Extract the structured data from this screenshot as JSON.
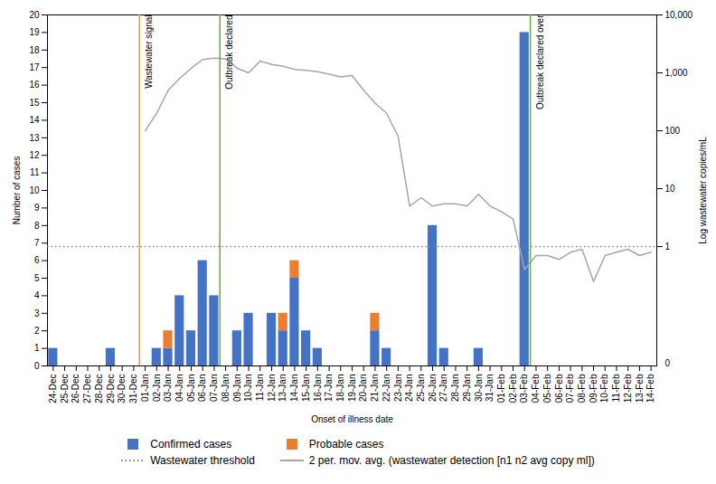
{
  "chart_data": {
    "type": "bar",
    "stacked": true,
    "x_label": "Onset of illness date",
    "y_label": "Number of cases",
    "y2_label": "Log wastewater copies/mL",
    "categories": [
      "24-Dec",
      "25-Dec",
      "26-Dec",
      "27-Dec",
      "28-Dec",
      "29-Dec",
      "30-Dec",
      "31-Dec",
      "01-Jan",
      "02-Jan",
      "03-Jan",
      "04-Jan",
      "05-Jan",
      "06-Jan",
      "07-Jan",
      "08-Jan",
      "09-Jan",
      "10-Jan",
      "11-Jan",
      "12-Jan",
      "13-Jan",
      "14-Jan",
      "15-Jan",
      "16-Jan",
      "17-Jan",
      "18-Jan",
      "19-Jan",
      "20-Jan",
      "21-Jan",
      "22-Jan",
      "23-Jan",
      "24-Jan",
      "25-Jan",
      "26-Jan",
      "27-Jan",
      "28-Jan",
      "29-Jan",
      "30-Jan",
      "31-Jan",
      "01-Feb",
      "02-Feb",
      "03-Feb",
      "04-Feb",
      "05-Feb",
      "06-Feb",
      "07-Feb",
      "08-Feb",
      "09-Feb",
      "10-Feb",
      "11-Feb",
      "12-Feb",
      "13-Feb",
      "14-Feb"
    ],
    "series": [
      {
        "name": "Confirmed cases",
        "type": "bar",
        "color": "#4472c4",
        "values": [
          1,
          0,
          0,
          0,
          0,
          1,
          0,
          0,
          0,
          1,
          1,
          4,
          2,
          6,
          4,
          0,
          2,
          3,
          0,
          3,
          2,
          5,
          2,
          1,
          0,
          0,
          0,
          0,
          2,
          1,
          0,
          0,
          0,
          8,
          1,
          0,
          0,
          1,
          0,
          0,
          0,
          19,
          0,
          0,
          0,
          0,
          0,
          0,
          0,
          0,
          0,
          0,
          0
        ]
      },
      {
        "name": "Probable cases",
        "type": "bar",
        "color": "#ed7d31",
        "values": [
          0,
          0,
          0,
          0,
          0,
          0,
          0,
          0,
          0,
          0,
          1,
          0,
          0,
          0,
          0,
          0,
          0,
          0,
          0,
          0,
          1,
          1,
          0,
          0,
          0,
          0,
          0,
          0,
          1,
          0,
          0,
          0,
          0,
          0,
          0,
          0,
          0,
          0,
          0,
          0,
          0,
          0,
          0,
          0,
          0,
          0,
          0,
          0,
          0,
          0,
          0,
          0,
          0
        ]
      },
      {
        "name": "Wastewater threshold",
        "type": "rule",
        "axis": "y2",
        "color": "#7f7f7f",
        "line_style": "dotted",
        "y": 1.0
      },
      {
        "name": "2 per. mov. avg. (wastewater detection [n1 n2 avg copy ml])",
        "type": "line",
        "axis": "y2",
        "color": "#a6a6a6",
        "line_style": "solid",
        "values": [
          null,
          null,
          null,
          null,
          null,
          null,
          null,
          null,
          100,
          200,
          500,
          800,
          1200,
          1700,
          1800,
          1750,
          1200,
          1000,
          1600,
          1400,
          1300,
          1150,
          1100,
          1050,
          950,
          850,
          900,
          500,
          300,
          200,
          80,
          5,
          7,
          5,
          5.5,
          5.5,
          5,
          8,
          5,
          4,
          3,
          0.4,
          0.7,
          0.7,
          0.6,
          0.8,
          0.9,
          0.25,
          0.7,
          0.8,
          0.9,
          0.7,
          0.8
        ]
      }
    ],
    "ylim": [
      0,
      20
    ],
    "yticks": [
      0,
      1,
      2,
      3,
      4,
      5,
      6,
      7,
      8,
      9,
      10,
      11,
      12,
      13,
      14,
      15,
      16,
      17,
      18,
      19,
      20
    ],
    "y2lim": [
      0.0087,
      10000
    ],
    "y2ticks": [
      1,
      10,
      100,
      {
        "value": 1000,
        "label": "1,000"
      },
      {
        "value": 10000,
        "label": "10,000"
      }
    ],
    "log": "y2",
    "grid": false,
    "legend": "bottom",
    "vlines": [
      {
        "after": "31-Dec",
        "text": "Wastewater signal",
        "color": "#c9a96e"
      },
      {
        "after": "07-Jan",
        "text": "Outbreak declared",
        "color": "#70ad47"
      },
      {
        "after": "03-Feb",
        "text": "Outbreak declared over",
        "color": "#70ad47"
      }
    ],
    "annotations": [
      {
        "text": "0",
        "axis": "y2"
      }
    ]
  }
}
